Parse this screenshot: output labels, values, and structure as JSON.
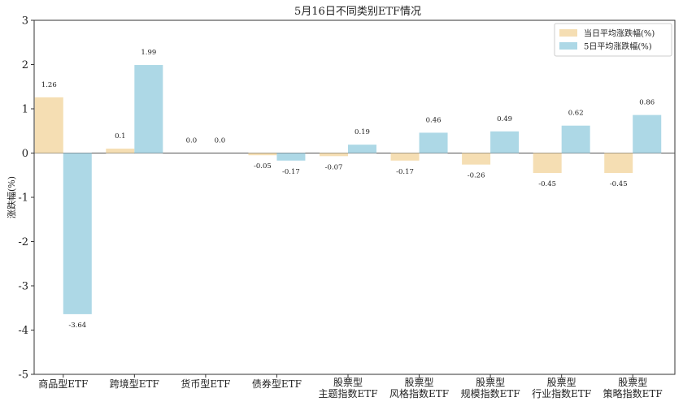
{
  "chart_data": {
    "type": "bar",
    "title": "5月16日不同类别ETF情况",
    "xlabel": "",
    "ylabel": "涨跌幅(%)",
    "ylim": [
      -5,
      3
    ],
    "yticks": [
      "-5",
      "-4",
      "-3",
      "-2",
      "-1",
      "0",
      "1",
      "2",
      "3"
    ],
    "grid": false,
    "legend_position": "top-right",
    "categories": [
      [
        "商品型ETF"
      ],
      [
        "跨境型ETF"
      ],
      [
        "货币型ETF"
      ],
      [
        "债券型ETF"
      ],
      [
        "股票型",
        "主题指数ETF"
      ],
      [
        "股票型",
        "风格指数ETF"
      ],
      [
        "股票型",
        "规模指数ETF"
      ],
      [
        "股票型",
        "行业指数ETF"
      ],
      [
        "股票型",
        "策略指数ETF"
      ]
    ],
    "series": [
      {
        "name": "当日平均涨跌幅(%)",
        "color": "#f5deb3",
        "values": [
          1.26,
          0.1,
          0.0,
          -0.05,
          -0.07,
          -0.17,
          -0.26,
          -0.45,
          -0.45
        ],
        "labels": [
          "1.26",
          "0.1",
          "0.0",
          "-0.05",
          "-0.07",
          "-0.17",
          "-0.26",
          "-0.45",
          "-0.45"
        ]
      },
      {
        "name": "5日平均涨跌幅(%)",
        "color": "#add8e6",
        "values": [
          -3.64,
          1.99,
          0.0,
          -0.17,
          0.19,
          0.46,
          0.49,
          0.62,
          0.86
        ],
        "labels": [
          "-3.64",
          "1.99",
          "0.0",
          "-0.17",
          "0.19",
          "0.46",
          "0.49",
          "0.62",
          "0.86"
        ]
      }
    ]
  }
}
